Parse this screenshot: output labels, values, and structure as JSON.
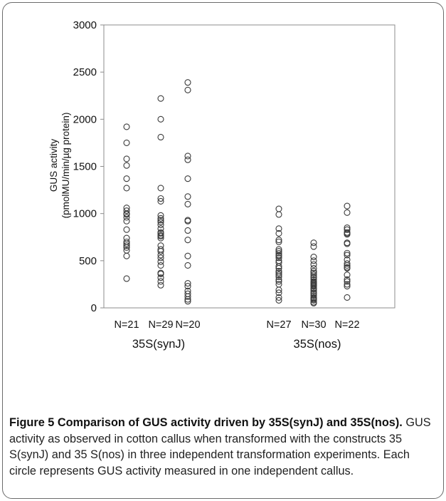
{
  "chart_data": {
    "type": "scatter",
    "ylabel_line1": "GUS activity",
    "ylabel_line2": "(pmolMU/min/µg protein)",
    "ylim": [
      0,
      3000
    ],
    "yticks": [
      0,
      500,
      1000,
      1500,
      2000,
      2500,
      3000
    ],
    "grid": false,
    "groups": [
      {
        "label": "35S(synJ)",
        "columns": [
          {
            "label": "N=21",
            "values": [
              1920,
              1750,
              1580,
              1510,
              1370,
              1270,
              1060,
              1030,
              990,
              960,
              920,
              830,
              740,
              700,
              680,
              660,
              640,
              610,
              550,
              310,
              1000
            ]
          },
          {
            "label": "N=29",
            "values": [
              2220,
              2000,
              1810,
              1270,
              1160,
              1130,
              980,
              950,
              930,
              880,
              840,
              800,
              790,
              760,
              740,
              660,
              620,
              560,
              530,
              490,
              450,
              370,
              360,
              320,
              280,
              240,
              770,
              910,
              600
            ]
          },
          {
            "label": "N=20",
            "values": [
              2390,
              2310,
              1610,
              1570,
              1370,
              1180,
              1100,
              930,
              920,
              820,
              720,
              550,
              450,
              260,
              230,
              150,
              120,
              90,
              70,
              180
            ]
          }
        ]
      },
      {
        "label": "35S(nos)",
        "columns": [
          {
            "label": "N=27",
            "values": [
              1050,
              990,
              840,
              790,
              720,
              700,
              600,
              580,
              560,
              530,
              500,
              480,
              440,
              390,
              370,
              350,
              330,
              280,
              250,
              190,
              160,
              110,
              80,
              620,
              420,
              300,
              550
            ]
          },
          {
            "label": "N=30",
            "values": [
              690,
              650,
              540,
              500,
              460,
              420,
              390,
              370,
              350,
              330,
              320,
              300,
              280,
              260,
              240,
              230,
              210,
              200,
              180,
              160,
              150,
              130,
              110,
              100,
              90,
              80,
              60,
              50,
              270,
              250
            ]
          },
          {
            "label": "N=22",
            "values": [
              1080,
              1010,
              850,
              830,
              800,
              780,
              680,
              580,
              560,
              470,
              450,
              430,
              300,
              280,
              250,
              230,
              110,
              790,
              510,
              350,
              690,
              420
            ]
          }
        ]
      }
    ]
  },
  "caption": {
    "bold": "Figure 5 Comparison of GUS activity driven by 35S(synJ) and 35S(nos).",
    "text": " GUS activity as observed in cotton callus when transformed with the constructs 35 S(synJ) and 35 S(nos) in three independent transformation experiments. Each circle represents GUS activity measured in one independent callus."
  }
}
